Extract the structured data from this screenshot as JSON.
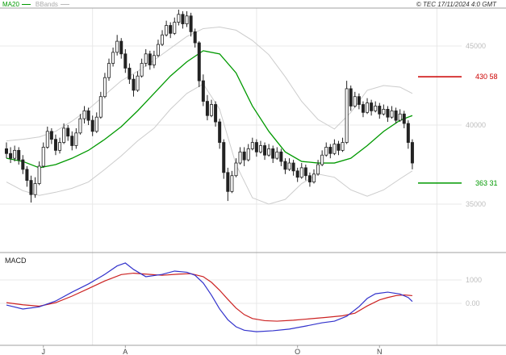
{
  "header": {
    "copyright": "© TEC 17/11/2024 4:0 GMT"
  },
  "legend": {
    "ma20": "MA20",
    "bbands": "BBands"
  },
  "macd_panel": {
    "title": "MACD"
  },
  "chart_data": {
    "type": "candlestick",
    "indicators": [
      "MA20",
      "BBands",
      "MACD"
    ],
    "colors": {
      "ma20": "#009900",
      "bbands": "#cccccc",
      "candle": "#222222",
      "level_resistance": "#cc0000",
      "level_support": "#009900",
      "macd": "#3333cc",
      "signal": "#cc2222",
      "grid": "#e8e8e8",
      "axis": "#a0a0a0",
      "tick_label": "#bdbdbd",
      "month_label": "#444444"
    },
    "x_axis": {
      "month_ticks": [
        {
          "label": "J",
          "i": 9
        },
        {
          "label": "A",
          "i": 29
        },
        {
          "label": "O",
          "i": 71
        },
        {
          "label": "N",
          "i": 91
        }
      ],
      "grid_i": [
        21,
        61,
        105
      ]
    },
    "price_axis": {
      "range": [
        32100,
        47400
      ],
      "ticks": [
        {
          "value": 45000,
          "label": "45000"
        },
        {
          "value": 40000,
          "label": "40000"
        },
        {
          "value": 35000,
          "label": "35000"
        }
      ]
    },
    "levels": [
      {
        "value": 43058,
        "label": "430 58",
        "color": "#cc0000",
        "name": "resistance"
      },
      {
        "value": 36331,
        "label": "363 31",
        "color": "#009900",
        "name": "support"
      }
    ],
    "candles": [
      [
        38500,
        38900,
        37900,
        38200
      ],
      [
        38200,
        38600,
        37600,
        37900
      ],
      [
        37900,
        38700,
        37700,
        38400
      ],
      [
        38400,
        38600,
        37500,
        37800
      ],
      [
        37800,
        38100,
        36900,
        37200
      ],
      [
        37200,
        37400,
        36100,
        36500
      ],
      [
        36500,
        36800,
        35100,
        35600
      ],
      [
        35600,
        36700,
        35400,
        36300
      ],
      [
        36300,
        37700,
        36200,
        37400
      ],
      [
        37400,
        38900,
        37300,
        38600
      ],
      [
        38600,
        39900,
        38500,
        39600
      ],
      [
        39600,
        39800,
        38800,
        39100
      ],
      [
        39100,
        39400,
        38100,
        38400
      ],
      [
        38400,
        39200,
        38200,
        38900
      ],
      [
        38900,
        40100,
        38800,
        39800
      ],
      [
        39800,
        40000,
        39000,
        39300
      ],
      [
        39300,
        39600,
        38400,
        38700
      ],
      [
        38700,
        39800,
        38500,
        39500
      ],
      [
        39500,
        40700,
        39400,
        40400
      ],
      [
        40400,
        41200,
        40100,
        40900
      ],
      [
        40900,
        41100,
        40000,
        40300
      ],
      [
        40300,
        40600,
        39300,
        39600
      ],
      [
        39600,
        40800,
        39500,
        40500
      ],
      [
        40500,
        42100,
        40400,
        41800
      ],
      [
        41800,
        43300,
        41700,
        43000
      ],
      [
        43000,
        44200,
        42800,
        43900
      ],
      [
        43900,
        44900,
        43700,
        44600
      ],
      [
        44600,
        45700,
        44400,
        45300
      ],
      [
        45300,
        45500,
        44200,
        44500
      ],
      [
        44500,
        44800,
        43300,
        43600
      ],
      [
        43600,
        43900,
        42600,
        42900
      ],
      [
        42900,
        43200,
        41800,
        42200
      ],
      [
        42200,
        43400,
        42100,
        43100
      ],
      [
        43100,
        44200,
        43000,
        43900
      ],
      [
        43900,
        44800,
        43700,
        44500
      ],
      [
        44500,
        44700,
        43500,
        43800
      ],
      [
        43800,
        44700,
        43600,
        44400
      ],
      [
        44400,
        45400,
        44300,
        45100
      ],
      [
        45100,
        46000,
        45000,
        45700
      ],
      [
        45700,
        46600,
        45600,
        46300
      ],
      [
        46300,
        46500,
        45500,
        45800
      ],
      [
        45800,
        46800,
        45700,
        46500
      ],
      [
        46500,
        47300,
        46300,
        47000
      ],
      [
        47000,
        47200,
        46100,
        46400
      ],
      [
        46400,
        47200,
        46200,
        46900
      ],
      [
        46900,
        47100,
        45600,
        45900
      ],
      [
        45900,
        46100,
        44900,
        45200
      ],
      [
        45200,
        45300,
        42400,
        42800
      ],
      [
        42800,
        43200,
        41200,
        41500
      ],
      [
        41500,
        41900,
        40300,
        40600
      ],
      [
        40600,
        41600,
        40500,
        41300
      ],
      [
        41300,
        41500,
        39900,
        40200
      ],
      [
        40200,
        40400,
        38500,
        38900
      ],
      [
        38900,
        39100,
        36600,
        37000
      ],
      [
        37000,
        37300,
        35200,
        35800
      ],
      [
        35800,
        37100,
        35700,
        36800
      ],
      [
        36800,
        37900,
        36700,
        37600
      ],
      [
        37600,
        38600,
        37500,
        38300
      ],
      [
        38300,
        38600,
        37400,
        37800
      ],
      [
        37800,
        38800,
        37700,
        38500
      ],
      [
        38500,
        39200,
        38400,
        38900
      ],
      [
        38900,
        39100,
        38000,
        38300
      ],
      [
        38300,
        39000,
        38200,
        38700
      ],
      [
        38700,
        38900,
        37800,
        38100
      ],
      [
        38100,
        38800,
        38000,
        38500
      ],
      [
        38500,
        38700,
        37600,
        37900
      ],
      [
        37900,
        38600,
        37800,
        38300
      ],
      [
        38300,
        38500,
        37400,
        37700
      ],
      [
        37700,
        37900,
        36900,
        37200
      ],
      [
        37200,
        37900,
        37100,
        37600
      ],
      [
        37600,
        37800,
        36800,
        37100
      ],
      [
        37100,
        37300,
        36400,
        36700
      ],
      [
        36700,
        37600,
        36600,
        37300
      ],
      [
        37300,
        37500,
        36500,
        36800
      ],
      [
        36800,
        37000,
        36100,
        36400
      ],
      [
        36400,
        37200,
        36300,
        36900
      ],
      [
        36900,
        37800,
        36800,
        37500
      ],
      [
        37500,
        38400,
        37400,
        38100
      ],
      [
        38100,
        38900,
        38000,
        38600
      ],
      [
        38600,
        38800,
        37900,
        38200
      ],
      [
        38200,
        39100,
        38100,
        38800
      ],
      [
        38800,
        39000,
        38100,
        38400
      ],
      [
        38400,
        39200,
        38300,
        38900
      ],
      [
        38900,
        42800,
        38800,
        42300
      ],
      [
        42300,
        42500,
        40900,
        41200
      ],
      [
        41200,
        42100,
        41100,
        41800
      ],
      [
        41800,
        42000,
        41000,
        41300
      ],
      [
        41300,
        41500,
        40500,
        40800
      ],
      [
        40800,
        41700,
        40700,
        41400
      ],
      [
        41400,
        41600,
        40600,
        40900
      ],
      [
        40900,
        41500,
        40800,
        41200
      ],
      [
        41200,
        41400,
        40400,
        40700
      ],
      [
        40700,
        41300,
        40600,
        41000
      ],
      [
        41000,
        41200,
        40200,
        40500
      ],
      [
        40500,
        41200,
        40400,
        40900
      ],
      [
        40900,
        41100,
        40100,
        40300
      ],
      [
        40300,
        41000,
        40200,
        40700
      ],
      [
        40700,
        40900,
        39800,
        40100
      ],
      [
        40100,
        40300,
        38500,
        38900
      ],
      [
        38900,
        39100,
        37200,
        37600
      ]
    ],
    "ma20": [
      [
        0,
        37900
      ],
      [
        4,
        37700
      ],
      [
        8,
        37300
      ],
      [
        12,
        37500
      ],
      [
        16,
        37900
      ],
      [
        20,
        38400
      ],
      [
        24,
        39100
      ],
      [
        28,
        39900
      ],
      [
        32,
        40900
      ],
      [
        36,
        42000
      ],
      [
        40,
        43100
      ],
      [
        44,
        44000
      ],
      [
        48,
        44700
      ],
      [
        52,
        44500
      ],
      [
        56,
        43300
      ],
      [
        60,
        41200
      ],
      [
        64,
        39600
      ],
      [
        68,
        38300
      ],
      [
        72,
        37700
      ],
      [
        76,
        37600
      ],
      [
        80,
        37600
      ],
      [
        84,
        37900
      ],
      [
        88,
        38700
      ],
      [
        92,
        39600
      ],
      [
        96,
        40300
      ],
      [
        99,
        40600
      ]
    ],
    "bb_upper": [
      [
        0,
        39000
      ],
      [
        4,
        39100
      ],
      [
        8,
        39250
      ],
      [
        12,
        39600
      ],
      [
        16,
        40250
      ],
      [
        20,
        41000
      ],
      [
        24,
        41900
      ],
      [
        28,
        42800
      ],
      [
        32,
        43400
      ],
      [
        36,
        44100
      ],
      [
        40,
        44850
      ],
      [
        44,
        45600
      ],
      [
        48,
        46100
      ],
      [
        52,
        46200
      ],
      [
        56,
        46000
      ],
      [
        60,
        45350
      ],
      [
        64,
        44450
      ],
      [
        68,
        43050
      ],
      [
        72,
        41500
      ],
      [
        76,
        40350
      ],
      [
        80,
        39750
      ],
      [
        84,
        40800
      ],
      [
        88,
        42200
      ],
      [
        92,
        42500
      ],
      [
        96,
        42400
      ],
      [
        99,
        42000
      ]
    ],
    "bb_lower": [
      [
        0,
        36400
      ],
      [
        4,
        35850
      ],
      [
        8,
        35550
      ],
      [
        12,
        35750
      ],
      [
        16,
        36000
      ],
      [
        20,
        36400
      ],
      [
        24,
        37200
      ],
      [
        28,
        38050
      ],
      [
        32,
        39000
      ],
      [
        36,
        39800
      ],
      [
        40,
        41000
      ],
      [
        44,
        42000
      ],
      [
        48,
        42600
      ],
      [
        52,
        41000
      ],
      [
        56,
        37500
      ],
      [
        60,
        35400
      ],
      [
        64,
        35000
      ],
      [
        68,
        35300
      ],
      [
        72,
        36300
      ],
      [
        76,
        36900
      ],
      [
        80,
        36700
      ],
      [
        84,
        35900
      ],
      [
        88,
        35500
      ],
      [
        92,
        35900
      ],
      [
        96,
        36600
      ],
      [
        99,
        37100
      ]
    ],
    "macd": {
      "axis_ticks": [
        {
          "value": 1000,
          "label": "1000"
        },
        {
          "value": 0,
          "label": "0.00"
        }
      ],
      "range": [
        -1700,
        2000
      ],
      "macd_line": [
        [
          0,
          -70
        ],
        [
          4,
          -240
        ],
        [
          8,
          -150
        ],
        [
          12,
          100
        ],
        [
          16,
          480
        ],
        [
          20,
          830
        ],
        [
          24,
          1240
        ],
        [
          27,
          1600
        ],
        [
          29,
          1725
        ],
        [
          31,
          1450
        ],
        [
          34,
          1140
        ],
        [
          38,
          1240
        ],
        [
          41,
          1380
        ],
        [
          44,
          1330
        ],
        [
          46,
          1200
        ],
        [
          48,
          870
        ],
        [
          50,
          350
        ],
        [
          52,
          -240
        ],
        [
          54,
          -700
        ],
        [
          56,
          -1000
        ],
        [
          58,
          -1150
        ],
        [
          61,
          -1210
        ],
        [
          65,
          -1170
        ],
        [
          69,
          -1100
        ],
        [
          73,
          -970
        ],
        [
          77,
          -830
        ],
        [
          80,
          -760
        ],
        [
          83,
          -550
        ],
        [
          86,
          -140
        ],
        [
          88,
          210
        ],
        [
          90,
          410
        ],
        [
          93,
          480
        ],
        [
          96,
          400
        ],
        [
          98,
          250
        ],
        [
          99,
          80
        ]
      ],
      "signal_line": [
        [
          0,
          30
        ],
        [
          4,
          -60
        ],
        [
          8,
          -120
        ],
        [
          12,
          30
        ],
        [
          16,
          310
        ],
        [
          20,
          630
        ],
        [
          24,
          960
        ],
        [
          28,
          1230
        ],
        [
          31,
          1290
        ],
        [
          34,
          1250
        ],
        [
          38,
          1200
        ],
        [
          42,
          1250
        ],
        [
          45,
          1270
        ],
        [
          48,
          1140
        ],
        [
          50,
          900
        ],
        [
          52,
          560
        ],
        [
          54,
          170
        ],
        [
          56,
          -200
        ],
        [
          58,
          -480
        ],
        [
          60,
          -650
        ],
        [
          63,
          -740
        ],
        [
          66,
          -760
        ],
        [
          70,
          -720
        ],
        [
          74,
          -660
        ],
        [
          78,
          -600
        ],
        [
          82,
          -530
        ],
        [
          85,
          -420
        ],
        [
          88,
          -110
        ],
        [
          91,
          150
        ],
        [
          93,
          250
        ],
        [
          95,
          330
        ],
        [
          97,
          360
        ],
        [
          99,
          330
        ]
      ]
    }
  }
}
